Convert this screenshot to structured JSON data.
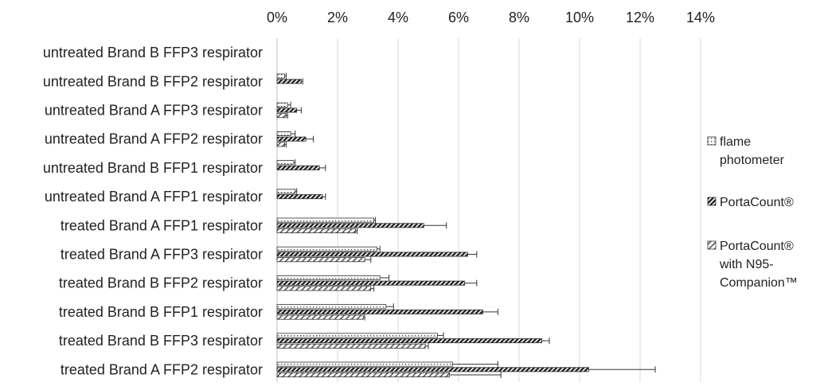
{
  "chart_data": {
    "type": "bar",
    "orientation": "horizontal",
    "categories": [
      "untreated Brand B FFP3 respirator",
      "untreated Brand B FFP2 respirator",
      "untreated Brand A FFP3 respirator",
      "untreated Brand A FFP2 respirator",
      "untreated Brand B FFP1 respirator",
      "untreated Brand A FFP1 respirator",
      "treated Brand A FFP1 respirator",
      "treated Brand A FFP3 respirator",
      "treated Brand B FFP2 respirator",
      "treated Brand B FFP1 respirator",
      "treated Brand B FFP3 respirator",
      "treated Brand A FFP2 respirator"
    ],
    "series": [
      {
        "name": "flame photometer",
        "pattern": "dots",
        "values": [
          0.0,
          0.25,
          0.35,
          0.45,
          0.55,
          0.6,
          3.2,
          3.3,
          3.4,
          3.6,
          5.3,
          5.8
        ],
        "errors": [
          0.0,
          0.05,
          0.1,
          0.15,
          0.05,
          0.05,
          0.05,
          0.1,
          0.3,
          0.25,
          0.2,
          1.5
        ]
      },
      {
        "name": "PortaCount®",
        "pattern": "dense-diagonal",
        "values": [
          0.0,
          0.8,
          0.65,
          0.95,
          1.4,
          1.5,
          4.85,
          6.3,
          6.2,
          6.8,
          8.75,
          10.3
        ],
        "errors": [
          0.0,
          0.05,
          0.15,
          0.25,
          0.2,
          0.1,
          0.75,
          0.3,
          0.4,
          0.5,
          0.25,
          2.2
        ]
      },
      {
        "name": "PortaCount® with N95-Companion™",
        "pattern": "diagonal",
        "values": [
          0.0,
          0.0,
          0.3,
          0.25,
          0.0,
          0.0,
          2.6,
          2.9,
          3.1,
          2.85,
          4.9,
          5.7
        ],
        "errors": [
          0.0,
          0.0,
          0.05,
          0.05,
          0.0,
          0.0,
          0.05,
          0.2,
          0.1,
          0.05,
          0.1,
          1.7
        ]
      }
    ],
    "xlim": [
      0,
      14
    ],
    "x_ticks": [
      "0%",
      "2%",
      "4%",
      "6%",
      "8%",
      "10%",
      "12%",
      "14%"
    ],
    "x_tick_values": [
      0,
      2,
      4,
      6,
      8,
      10,
      12,
      14
    ],
    "x_axis_position": "top",
    "grid": true,
    "legend_placement": "right",
    "legend_lines": [
      [
        "flame",
        "photometer"
      ],
      [
        "PortaCount®"
      ],
      [
        "PortaCount®",
        "with N95-",
        "Companion™"
      ]
    ]
  }
}
